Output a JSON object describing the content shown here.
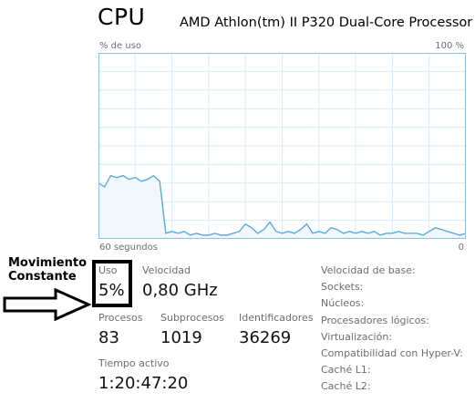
{
  "header": {
    "title": "CPU",
    "processor": "AMD Athlon(tm) II P320 Dual-Core Processor"
  },
  "chart_data": {
    "type": "area",
    "ylabel": "% de uso",
    "y_max_label": "100 %",
    "x_left_label": "60 segundos",
    "x_right_label": "0",
    "ylim": [
      0,
      100
    ],
    "xlim": [
      60,
      0
    ],
    "grid": true,
    "colors": {
      "line": "#4ea6dc",
      "fill": "#f1f7fc",
      "grid": "#d9eaf7",
      "border": "#8dbfe6"
    },
    "x": [
      60,
      59,
      58,
      57,
      56,
      55,
      54,
      53,
      52,
      51,
      50,
      49,
      48,
      47,
      46,
      45,
      44,
      43,
      42,
      41,
      40,
      39,
      38,
      37,
      36,
      35,
      34,
      33,
      32,
      31,
      30,
      29,
      28,
      27,
      26,
      25,
      24,
      23,
      22,
      21,
      20,
      19,
      18,
      17,
      16,
      15,
      14,
      13,
      12,
      11,
      10,
      9,
      8,
      7,
      6,
      5,
      4,
      3,
      2,
      1,
      0
    ],
    "values": [
      30,
      28,
      34,
      33,
      34,
      32,
      33,
      31,
      32,
      34,
      31,
      3,
      4,
      3,
      4,
      2,
      3,
      2,
      2,
      3,
      2,
      2,
      3,
      4,
      8,
      6,
      3,
      5,
      9,
      4,
      3,
      4,
      3,
      5,
      8,
      3,
      4,
      3,
      6,
      5,
      3,
      4,
      3,
      4,
      3,
      4,
      2,
      3,
      3,
      4,
      3,
      3,
      3,
      2,
      4,
      6,
      5,
      4,
      3,
      2,
      3
    ]
  },
  "stats": {
    "uso_label": "Uso",
    "uso_value": "5%",
    "velocidad_label": "Velocidad",
    "velocidad_value": "0,80 GHz",
    "procesos_label": "Procesos",
    "procesos_value": "83",
    "subprocesos_label": "Subprocesos",
    "subprocesos_value": "1019",
    "identificadores_label": "Identificadores",
    "identificadores_value": "36269",
    "tiempo_label": "Tiempo activo",
    "tiempo_value": "1:20:47:20"
  },
  "specs": {
    "items": [
      "Velocidad de base:",
      "Sockets:",
      "Núcleos:",
      "Procesadores lógicos:",
      "Virtualización:",
      "Compatibilidad con Hyper-V:",
      "Caché L1:",
      "Caché L2:"
    ]
  },
  "annotation": {
    "line1": "Movimiento",
    "line2": "Constante"
  }
}
